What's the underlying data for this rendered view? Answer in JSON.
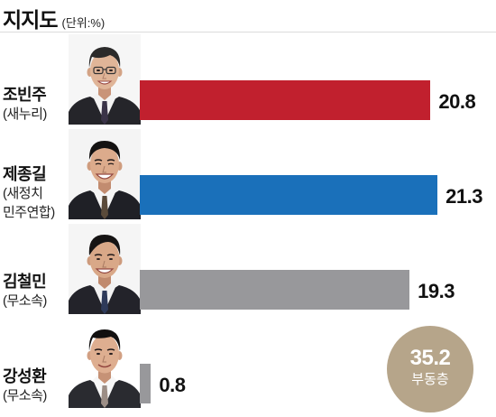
{
  "chart_data": {
    "type": "bar",
    "orientation": "horizontal",
    "title": "지지도",
    "unit": "(단위:%)",
    "categories": [
      "조빈주",
      "제종길",
      "김철민",
      "강성환"
    ],
    "parties": [
      [
        "(새누리)"
      ],
      [
        "(새정치",
        "민주연합)"
      ],
      [
        "(무소속)"
      ],
      [
        "(무소속)"
      ]
    ],
    "values": [
      20.8,
      21.3,
      19.3,
      0.8
    ],
    "colors": [
      "#c1202e",
      "#1a70ba",
      "#98989b",
      "#98989b"
    ],
    "undecided": {
      "value": 35.2,
      "label": "부동층",
      "color": "#b6a58a"
    },
    "grid": false,
    "legend": "none"
  }
}
